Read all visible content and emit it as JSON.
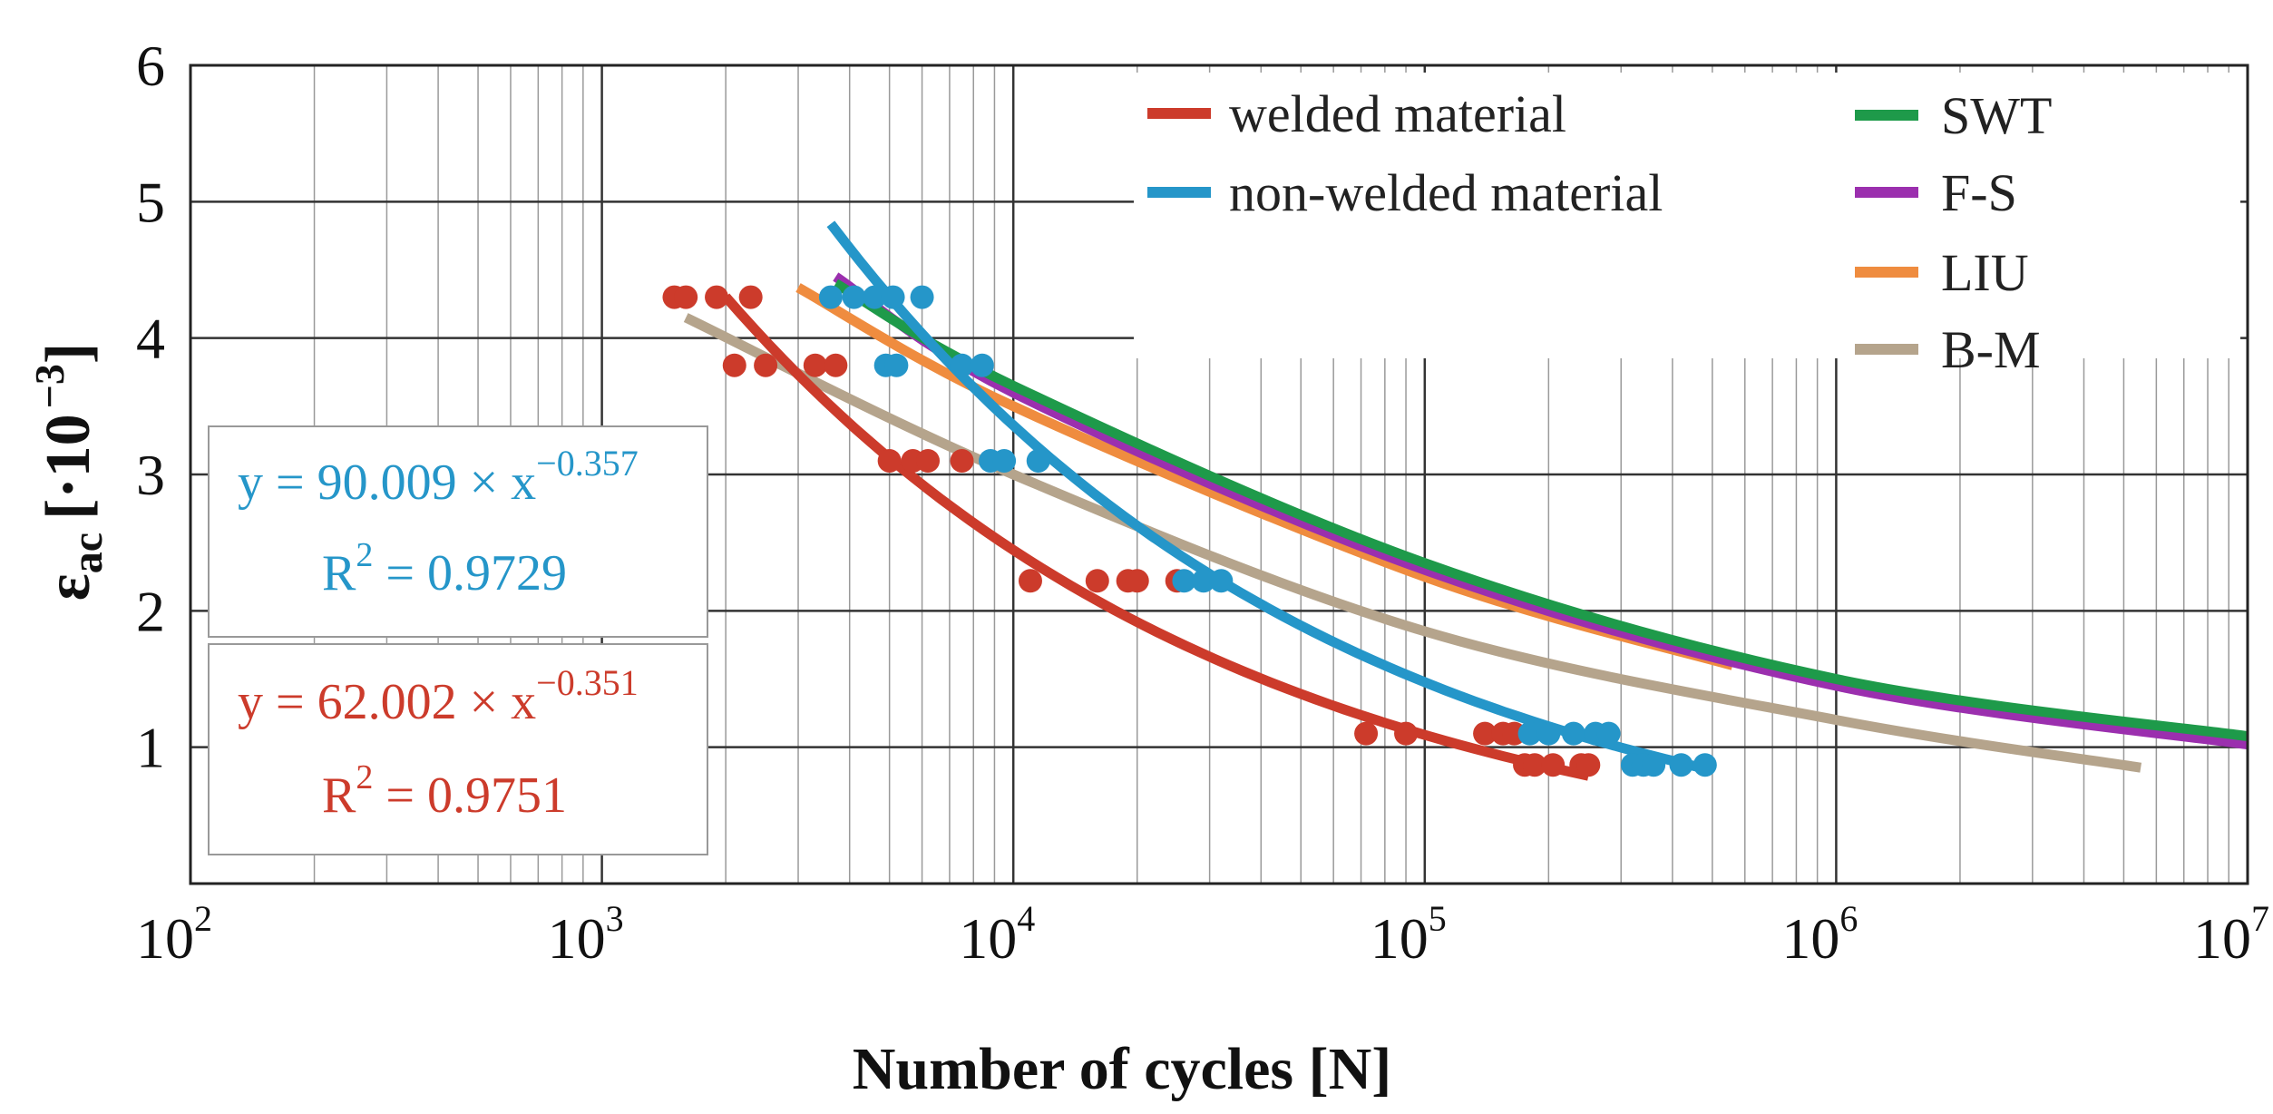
{
  "chart_data": {
    "type": "scatter",
    "title": "",
    "xlabel": "Number of cycles [N]",
    "ylabel_main": "ε",
    "ylabel_sub": "ac",
    "ylabel_unit": "[·10",
    "ylabel_exp": "−3",
    "ylabel_close": "]",
    "xscale": "log",
    "xlim": [
      100,
      10000000
    ],
    "ylim": [
      0,
      6
    ],
    "grid": true,
    "y_ticks": [
      "1",
      "2",
      "3",
      "4",
      "5",
      "6"
    ],
    "x_ticks": [
      {
        "base": "10",
        "exp": "2",
        "value": 100
      },
      {
        "base": "10",
        "exp": "3",
        "value": 1000
      },
      {
        "base": "10",
        "exp": "4",
        "value": 10000
      },
      {
        "base": "10",
        "exp": "5",
        "value": 100000
      },
      {
        "base": "10",
        "exp": "6",
        "value": 1000000
      },
      {
        "base": "10",
        "exp": "7",
        "value": 10000000
      }
    ],
    "scatter_series": [
      {
        "name": "welded material",
        "color": "#cc3b2b",
        "points": [
          [
            1500,
            4.3
          ],
          [
            1600,
            4.3
          ],
          [
            1900,
            4.3
          ],
          [
            2300,
            4.3
          ],
          [
            2100,
            3.8
          ],
          [
            2500,
            3.8
          ],
          [
            3300,
            3.8
          ],
          [
            3700,
            3.8
          ],
          [
            5000,
            3.1
          ],
          [
            5700,
            3.1
          ],
          [
            6200,
            3.1
          ],
          [
            7500,
            3.1
          ],
          [
            11000,
            2.22
          ],
          [
            16000,
            2.22
          ],
          [
            19000,
            2.22
          ],
          [
            20000,
            2.22
          ],
          [
            25000,
            2.22
          ],
          [
            72000,
            1.1
          ],
          [
            90000,
            1.1
          ],
          [
            140000,
            1.1
          ],
          [
            155000,
            1.1
          ],
          [
            165000,
            1.1
          ],
          [
            175000,
            0.87
          ],
          [
            185000,
            0.87
          ],
          [
            205000,
            0.87
          ],
          [
            240000,
            0.87
          ],
          [
            250000,
            0.87
          ]
        ]
      },
      {
        "name": "non-welded material",
        "color": "#2596c9",
        "points": [
          [
            3600,
            4.3
          ],
          [
            4100,
            4.3
          ],
          [
            4600,
            4.3
          ],
          [
            5100,
            4.3
          ],
          [
            6000,
            4.3
          ],
          [
            4900,
            3.8
          ],
          [
            5200,
            3.8
          ],
          [
            7500,
            3.8
          ],
          [
            8400,
            3.8
          ],
          [
            8800,
            3.1
          ],
          [
            9500,
            3.1
          ],
          [
            11500,
            3.1
          ],
          [
            26000,
            2.22
          ],
          [
            29000,
            2.22
          ],
          [
            32000,
            2.22
          ],
          [
            180000,
            1.1
          ],
          [
            200000,
            1.1
          ],
          [
            230000,
            1.1
          ],
          [
            260000,
            1.1
          ],
          [
            280000,
            1.1
          ],
          [
            320000,
            0.87
          ],
          [
            340000,
            0.87
          ],
          [
            360000,
            0.87
          ],
          [
            420000,
            0.87
          ],
          [
            480000,
            0.87
          ]
        ]
      }
    ],
    "fit_curves": [
      {
        "name": "welded material",
        "color": "#cc3b2b",
        "a": 62.002,
        "b": -0.351,
        "x_range": [
          2000,
          250000
        ]
      },
      {
        "name": "non-welded material",
        "color": "#2596c9",
        "a": 90.009,
        "b": -0.357,
        "x_range": [
          3600,
          490000
        ]
      }
    ],
    "model_curves": [
      {
        "name": "SWT",
        "color": "#1e9a4a",
        "points": [
          [
            3700,
            4.4
          ],
          [
            10000,
            3.65
          ],
          [
            100000,
            2.35
          ],
          [
            1000000,
            1.5
          ],
          [
            10000000,
            1.08
          ]
        ]
      },
      {
        "name": "F-S",
        "color": "#9b2fae",
        "points": [
          [
            3700,
            4.45
          ],
          [
            10000,
            3.6
          ],
          [
            100000,
            2.3
          ],
          [
            1000000,
            1.45
          ],
          [
            10000000,
            1.02
          ]
        ]
      },
      {
        "name": "LIU",
        "color": "#ef8c3f",
        "points": [
          [
            3000,
            4.37
          ],
          [
            10000,
            3.5
          ],
          [
            100000,
            2.25
          ],
          [
            560000,
            1.6
          ]
        ]
      },
      {
        "name": "B-M",
        "color": "#b5a48c",
        "points": [
          [
            1600,
            4.15
          ],
          [
            10000,
            3.0
          ],
          [
            100000,
            1.85
          ],
          [
            1000000,
            1.2
          ],
          [
            5500000,
            0.85
          ]
        ]
      }
    ],
    "legend_left": [
      {
        "label": "welded material",
        "color": "#cc3b2b"
      },
      {
        "label": "non-welded material",
        "color": "#2596c9"
      }
    ],
    "legend_right": [
      {
        "label": "SWT",
        "color": "#1e9a4a"
      },
      {
        "label": "F-S",
        "color": "#9b2fae"
      },
      {
        "label": "LIU",
        "color": "#ef8c3f"
      },
      {
        "label": "B-M",
        "color": "#b5a48c"
      }
    ],
    "equations": [
      {
        "eq_prefix": "y = 90.009 × x",
        "eq_exp": "−0.357",
        "r2_prefix": "R",
        "r2_exp": "2",
        "r2_value": " = 0.9729",
        "color": "#2596c9"
      },
      {
        "eq_prefix": "y = 62.002 × x",
        "eq_exp": "−0.351",
        "r2_prefix": "R",
        "r2_exp": "2",
        "r2_value": " = 0.9751",
        "color": "#cc3b2b"
      }
    ]
  }
}
